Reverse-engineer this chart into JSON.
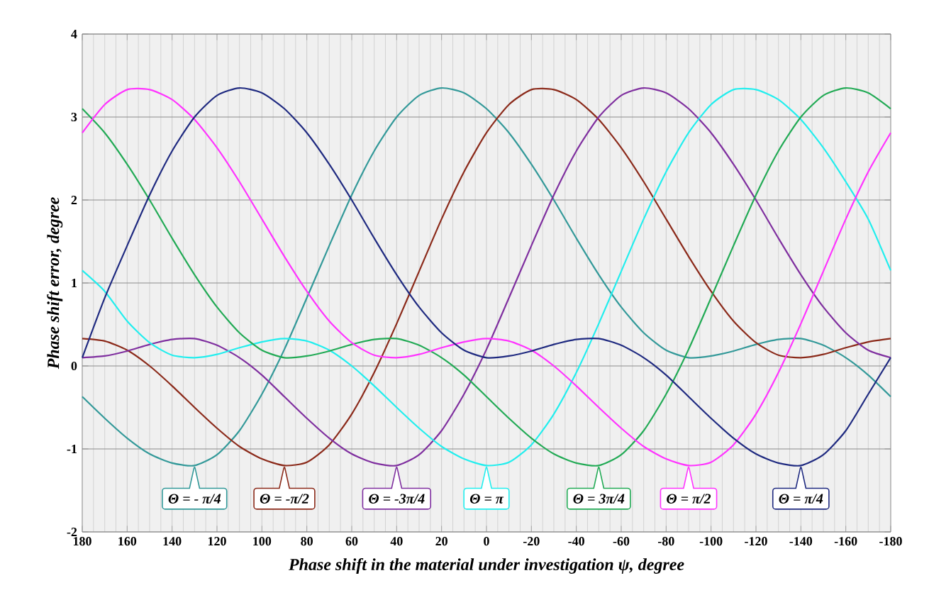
{
  "chart_data": {
    "type": "line",
    "xlabel": "Phase shift in the material under investigation ψ, degree",
    "ylabel": "Phase shift error, degree",
    "x": [
      180,
      170,
      160,
      150,
      140,
      130,
      120,
      110,
      100,
      90,
      80,
      70,
      60,
      50,
      40,
      30,
      20,
      10,
      0,
      -10,
      -20,
      -30,
      -40,
      -50,
      -60,
      -70,
      -80,
      -90,
      -100,
      -110,
      -120,
      -130,
      -140,
      -150,
      -160,
      -170,
      -180
    ],
    "xlim": [
      180,
      -180
    ],
    "xticks": [
      180,
      160,
      140,
      120,
      100,
      80,
      60,
      40,
      20,
      0,
      -20,
      -40,
      -60,
      -80,
      -100,
      -120,
      -140,
      -160,
      -180
    ],
    "ylim": [
      -2,
      4
    ],
    "yticks": [
      -2,
      -1,
      0,
      1,
      2,
      3,
      4
    ],
    "grid": true,
    "legend": "bottom",
    "marker": "none",
    "line_style": "solid",
    "series": [
      {
        "name": "Θ = - π/4",
        "color": "#339999",
        "values": [
          -0.37,
          -0.63,
          -0.87,
          -1.06,
          -1.17,
          -1.2,
          -1.07,
          -0.78,
          -0.34,
          0.2,
          0.82,
          1.45,
          2.06,
          2.59,
          3.0,
          3.26,
          3.35,
          3.29,
          3.1,
          2.81,
          2.43,
          2.0,
          1.54,
          1.1,
          0.71,
          0.4,
          0.19,
          0.1,
          0.12,
          0.18,
          0.26,
          0.32,
          0.33,
          0.25,
          0.1,
          -0.11,
          -0.37
        ]
      },
      {
        "name": "Θ = -π/2",
        "color": "#8b2a1a",
        "values": [
          0.33,
          0.3,
          0.19,
          0.0,
          -0.24,
          -0.5,
          -0.75,
          -0.97,
          -1.12,
          -1.2,
          -1.16,
          -0.95,
          -0.58,
          -0.08,
          0.51,
          1.14,
          1.77,
          2.34,
          2.81,
          3.15,
          3.33,
          3.33,
          3.21,
          2.97,
          2.63,
          2.22,
          1.77,
          1.32,
          0.9,
          0.54,
          0.28,
          0.13,
          0.1,
          0.14,
          0.22,
          0.29,
          0.33
        ]
      },
      {
        "name": "Θ = -3π/4",
        "color": "#7f2f9f",
        "values": [
          0.1,
          0.12,
          0.18,
          0.26,
          0.32,
          0.33,
          0.25,
          0.1,
          -0.11,
          -0.37,
          -0.63,
          -0.87,
          -1.06,
          -1.17,
          -1.2,
          -1.07,
          -0.78,
          -0.34,
          0.2,
          0.82,
          1.45,
          2.06,
          2.59,
          3.0,
          3.26,
          3.35,
          3.29,
          3.1,
          2.81,
          2.43,
          2.0,
          1.54,
          1.1,
          0.71,
          0.4,
          0.19,
          0.1
        ]
      },
      {
        "name": "Θ = π",
        "color": "#22eeee",
        "values": [
          1.15,
          0.9,
          0.54,
          0.28,
          0.13,
          0.1,
          0.14,
          0.22,
          0.29,
          0.33,
          0.3,
          0.19,
          0.0,
          -0.24,
          -0.5,
          -0.75,
          -0.97,
          -1.12,
          -1.2,
          -1.16,
          -0.95,
          -0.58,
          -0.08,
          0.51,
          1.14,
          1.77,
          2.34,
          2.81,
          3.15,
          3.33,
          3.33,
          3.21,
          2.97,
          2.63,
          2.22,
          1.77,
          1.15
        ]
      },
      {
        "name": "Θ = 3π/4",
        "color": "#22aa55",
        "values": [
          3.1,
          2.81,
          2.43,
          2.0,
          1.54,
          1.1,
          0.71,
          0.4,
          0.19,
          0.1,
          0.12,
          0.18,
          0.26,
          0.32,
          0.33,
          0.25,
          0.1,
          -0.11,
          -0.37,
          -0.63,
          -0.87,
          -1.06,
          -1.17,
          -1.2,
          -1.07,
          -0.78,
          -0.34,
          0.2,
          0.82,
          1.45,
          2.06,
          2.59,
          3.0,
          3.26,
          3.35,
          3.29,
          3.1
        ]
      },
      {
        "name": "Θ = π/2",
        "color": "#ff33ff",
        "values": [
          2.81,
          3.15,
          3.33,
          3.33,
          3.21,
          2.97,
          2.63,
          2.22,
          1.77,
          1.32,
          0.9,
          0.54,
          0.28,
          0.13,
          0.1,
          0.14,
          0.22,
          0.29,
          0.33,
          0.3,
          0.19,
          0.0,
          -0.24,
          -0.5,
          -0.75,
          -0.97,
          -1.12,
          -1.2,
          -1.16,
          -0.95,
          -0.58,
          -0.08,
          0.51,
          1.14,
          1.77,
          2.34,
          2.81
        ]
      },
      {
        "name": "Θ = π/4",
        "color": "#1f2a80",
        "values": [
          0.1,
          0.82,
          1.45,
          2.06,
          2.59,
          3.0,
          3.26,
          3.35,
          3.29,
          3.1,
          2.81,
          2.43,
          2.0,
          1.54,
          1.1,
          0.71,
          0.4,
          0.19,
          0.1,
          0.12,
          0.18,
          0.26,
          0.32,
          0.33,
          0.25,
          0.1,
          -0.11,
          -0.37,
          -0.63,
          -0.87,
          -1.06,
          -1.17,
          -1.2,
          -1.07,
          -0.78,
          -0.34,
          0.1
        ]
      }
    ]
  }
}
